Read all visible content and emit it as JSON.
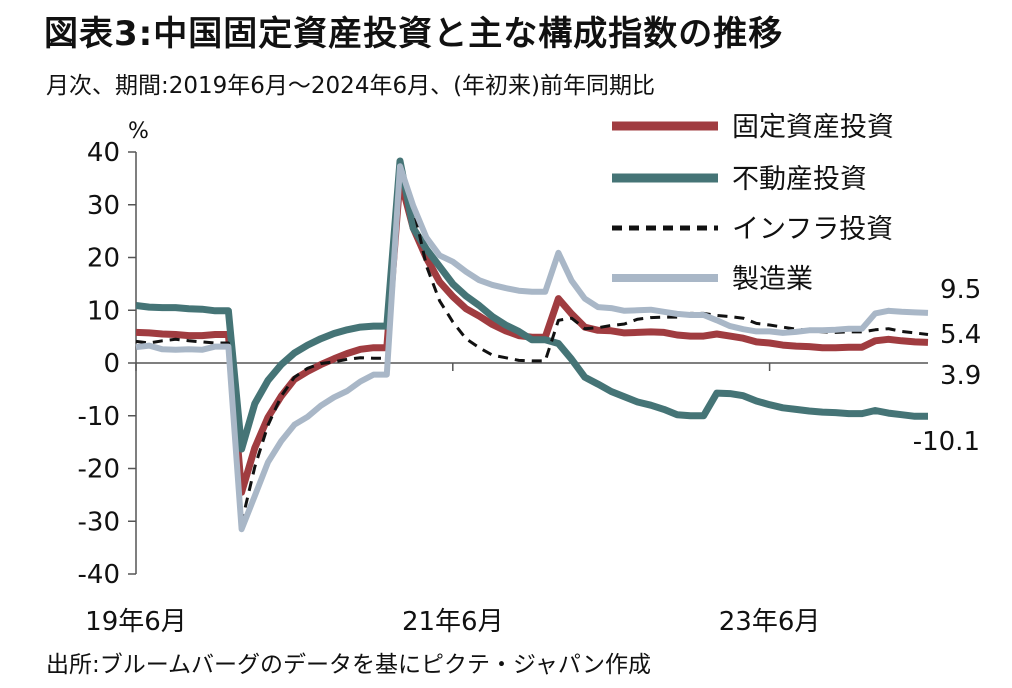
{
  "title": "図表3:中国固定資産投資と主な構成指数の推移",
  "subtitle": "月次、期間:2019年6月～2024年6月、(年初来)前年同期比",
  "source": "出所:ブルームバーグのデータを基にピクテ・ジャパン作成",
  "chart_data": {
    "type": "line",
    "unit_label": "%",
    "ylim": [
      -40,
      40
    ],
    "yticks": [
      40,
      30,
      20,
      10,
      0,
      -10,
      -20,
      -30,
      -40
    ],
    "xlim": [
      "2019-06",
      "2024-06"
    ],
    "xticks": [
      {
        "x": "2019-06",
        "label": "19年6月"
      },
      {
        "x": "2021-06",
        "label": "21年6月"
      },
      {
        "x": "2023-06",
        "label": "23年6月"
      }
    ],
    "grid": false,
    "legend": "top-right",
    "x": [
      "2019-06",
      "2019-07",
      "2019-08",
      "2019-09",
      "2019-10",
      "2019-11",
      "2019-12",
      "2020-01",
      "2020-02",
      "2020-03",
      "2020-04",
      "2020-05",
      "2020-06",
      "2020-07",
      "2020-08",
      "2020-09",
      "2020-10",
      "2020-11",
      "2020-12",
      "2021-01",
      "2021-02",
      "2021-03",
      "2021-04",
      "2021-05",
      "2021-06",
      "2021-07",
      "2021-08",
      "2021-09",
      "2021-10",
      "2021-11",
      "2021-12",
      "2022-01",
      "2022-02",
      "2022-03",
      "2022-04",
      "2022-05",
      "2022-06",
      "2022-07",
      "2022-08",
      "2022-09",
      "2022-10",
      "2022-11",
      "2022-12",
      "2023-01",
      "2023-02",
      "2023-03",
      "2023-04",
      "2023-05",
      "2023-06",
      "2023-07",
      "2023-08",
      "2023-09",
      "2023-10",
      "2023-11",
      "2023-12",
      "2024-01",
      "2024-02",
      "2024-03",
      "2024-04",
      "2024-05",
      "2024-06"
    ],
    "series": [
      {
        "name": "固定資産投資",
        "color": "#a03c40",
        "width": 7,
        "dash": "",
        "values": [
          5.8,
          5.7,
          5.5,
          5.4,
          5.2,
          5.2,
          5.4,
          5.4,
          -24.5,
          -16.1,
          -10.3,
          -6.3,
          -3.1,
          -1.6,
          -0.3,
          0.8,
          1.8,
          2.6,
          2.9,
          2.9,
          35.0,
          25.6,
          19.9,
          15.4,
          12.6,
          10.3,
          8.9,
          7.3,
          6.1,
          5.2,
          4.9,
          4.9,
          12.2,
          9.3,
          6.8,
          6.2,
          6.1,
          5.7,
          5.8,
          5.9,
          5.8,
          5.3,
          5.1,
          5.1,
          5.5,
          5.1,
          4.7,
          4.0,
          3.8,
          3.4,
          3.2,
          3.1,
          2.9,
          2.9,
          3.0,
          3.0,
          4.2,
          4.5,
          4.2,
          4.0,
          3.9
        ]
      },
      {
        "name": "不動産投資",
        "color": "#457476",
        "width": 7,
        "dash": "",
        "values": [
          10.9,
          10.6,
          10.5,
          10.5,
          10.3,
          10.2,
          9.9,
          9.9,
          -16.3,
          -7.7,
          -3.3,
          -0.3,
          1.9,
          3.4,
          4.6,
          5.6,
          6.3,
          6.8,
          7.0,
          7.0,
          38.3,
          25.6,
          21.6,
          18.3,
          15.0,
          12.7,
          10.9,
          8.8,
          7.2,
          6.0,
          4.4,
          4.4,
          3.7,
          0.7,
          -2.7,
          -4.0,
          -5.4,
          -6.4,
          -7.4,
          -8.0,
          -8.8,
          -9.8,
          -10.0,
          -10.0,
          -5.7,
          -5.8,
          -6.2,
          -7.2,
          -7.9,
          -8.5,
          -8.8,
          -9.1,
          -9.3,
          -9.4,
          -9.6,
          -9.6,
          -9.0,
          -9.5,
          -9.8,
          -10.1,
          -10.1
        ]
      },
      {
        "name": "インフラ投資",
        "color": "#111111",
        "width": 3,
        "dash": "10,7",
        "values": [
          4.1,
          3.8,
          4.2,
          4.5,
          4.2,
          4.0,
          3.8,
          3.8,
          -30.3,
          -19.7,
          -11.8,
          -6.3,
          -2.7,
          -1.0,
          -0.1,
          0.2,
          0.7,
          1.0,
          0.9,
          0.9,
          36.6,
          29.7,
          18.4,
          11.8,
          7.8,
          4.6,
          2.9,
          1.5,
          1.0,
          0.5,
          0.4,
          0.4,
          8.1,
          8.5,
          6.5,
          6.7,
          7.1,
          7.4,
          8.3,
          8.6,
          8.7,
          8.7,
          9.4,
          9.4,
          9.0,
          8.8,
          8.5,
          7.5,
          7.2,
          6.8,
          6.4,
          6.2,
          5.9,
          5.8,
          5.9,
          5.9,
          6.3,
          6.5,
          6.0,
          5.7,
          5.4
        ]
      },
      {
        "name": "製造業",
        "color": "#a9b7c7",
        "width": 6,
        "dash": "",
        "values": [
          3.0,
          3.3,
          2.6,
          2.5,
          2.6,
          2.5,
          3.1,
          3.1,
          -31.5,
          -25.2,
          -18.8,
          -14.8,
          -11.7,
          -10.2,
          -8.1,
          -6.5,
          -5.3,
          -3.5,
          -2.2,
          -2.2,
          37.3,
          29.8,
          23.8,
          20.4,
          19.2,
          17.3,
          15.7,
          14.8,
          14.2,
          13.7,
          13.5,
          13.5,
          20.9,
          15.6,
          12.2,
          10.6,
          10.4,
          9.9,
          10.0,
          10.1,
          9.7,
          9.3,
          9.1,
          9.1,
          8.1,
          7.0,
          6.4,
          6.0,
          6.0,
          5.7,
          5.9,
          6.2,
          6.2,
          6.3,
          6.5,
          6.5,
          9.4,
          9.9,
          9.7,
          9.6,
          9.5
        ]
      }
    ],
    "end_labels": [
      "9.5",
      "5.4",
      "3.9",
      "-10.1"
    ]
  }
}
